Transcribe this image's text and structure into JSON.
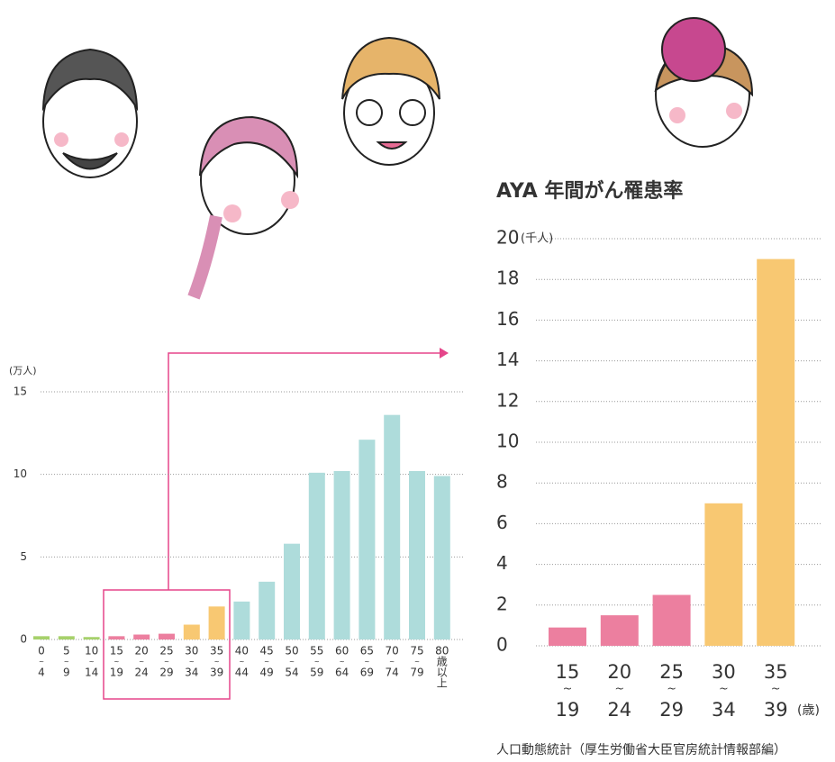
{
  "chart_data": [
    {
      "type": "bar",
      "y_unit": "(万人)",
      "ylim": [
        0,
        15
      ],
      "yticks": [
        0,
        5,
        10,
        15
      ],
      "grid": true,
      "categories": [
        [
          "0",
          "~",
          "4"
        ],
        [
          "5",
          "~",
          "9"
        ],
        [
          "10",
          "~",
          "14"
        ],
        [
          "15",
          "~",
          "19"
        ],
        [
          "20",
          "~",
          "24"
        ],
        [
          "25",
          "~",
          "29"
        ],
        [
          "30",
          "~",
          "34"
        ],
        [
          "35",
          "~",
          "39"
        ],
        [
          "40",
          "~",
          "44"
        ],
        [
          "45",
          "~",
          "49"
        ],
        [
          "50",
          "~",
          "54"
        ],
        [
          "55",
          "~",
          "59"
        ],
        [
          "60",
          "~",
          "64"
        ],
        [
          "65",
          "~",
          "69"
        ],
        [
          "70",
          "~",
          "74"
        ],
        [
          "75",
          "~",
          "79"
        ],
        [
          "80",
          "歳",
          "以",
          "上"
        ]
      ],
      "values": [
        0.2,
        0.2,
        0.15,
        0.2,
        0.3,
        0.35,
        0.9,
        2.0,
        2.3,
        3.5,
        5.8,
        10.1,
        10.2,
        12.1,
        13.6,
        10.2,
        9.9
      ],
      "colors": [
        "#a6d16b",
        "#a6d16b",
        "#a6d16b",
        "#ec7f9f",
        "#ec7f9f",
        "#ec7f9f",
        "#f8c872",
        "#f8c872",
        "#aedcdb",
        "#aedcdb",
        "#aedcdb",
        "#aedcdb",
        "#aedcdb",
        "#aedcdb",
        "#aedcdb",
        "#aedcdb",
        "#aedcdb"
      ]
    },
    {
      "type": "bar",
      "title": "AYA 年間がん罹患率",
      "y_unit": "(千人)",
      "x_unit": "(歳)",
      "ylim": [
        0,
        20
      ],
      "yticks": [
        0,
        2,
        4,
        6,
        8,
        10,
        12,
        14,
        16,
        18,
        20
      ],
      "grid": true,
      "categories": [
        [
          "15",
          "~",
          "19"
        ],
        [
          "20",
          "~",
          "24"
        ],
        [
          "25",
          "~",
          "29"
        ],
        [
          "30",
          "~",
          "34"
        ],
        [
          "35",
          "~",
          "39"
        ]
      ],
      "values": [
        0.9,
        1.5,
        2.5,
        7.0,
        19.0
      ],
      "colors": [
        "#ec7f9f",
        "#ec7f9f",
        "#ec7f9f",
        "#f8c872",
        "#f8c872"
      ]
    }
  ],
  "source": "人口動態統計（厚生労働省大臣官房統計情報部編）"
}
